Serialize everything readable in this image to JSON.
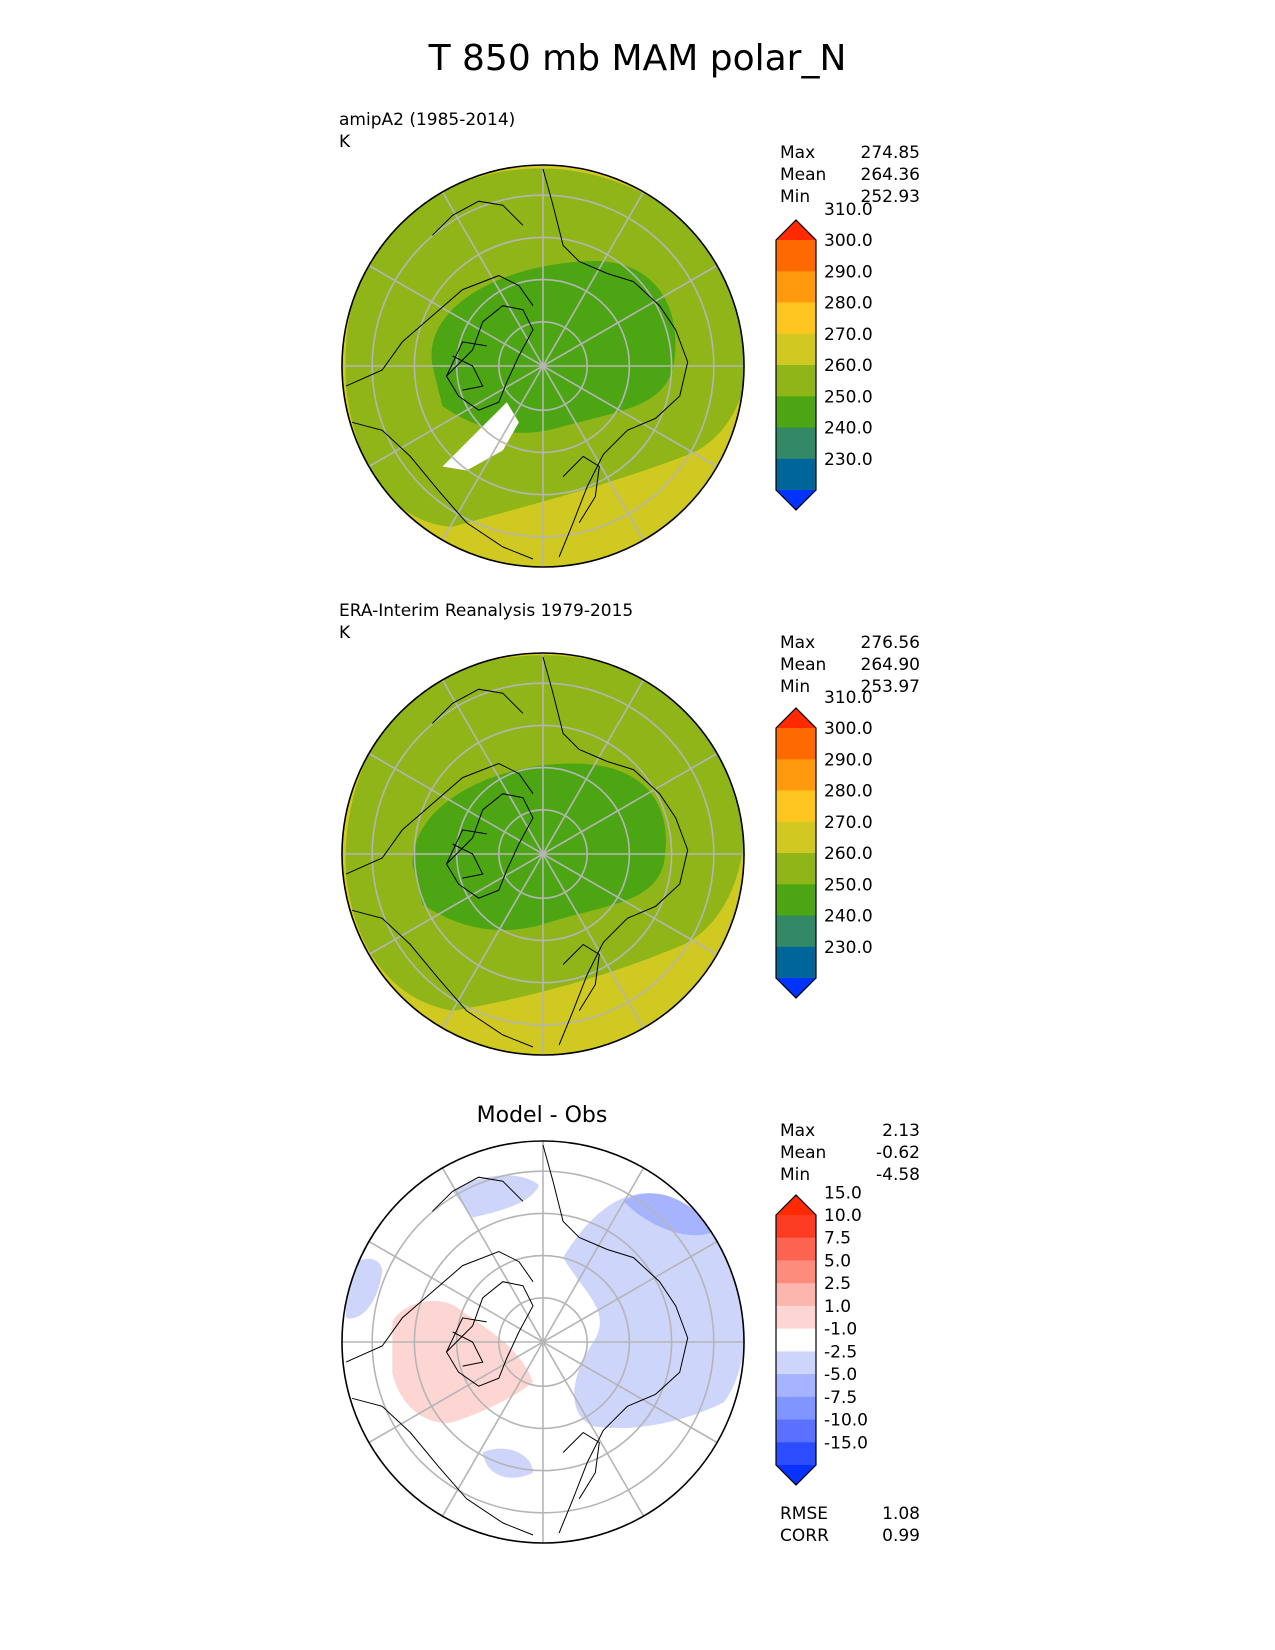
{
  "title": "T 850 mb MAM polar_N",
  "colors": {
    "abs_bins": [
      "#0033ff",
      "#006699",
      "#338866",
      "#4ca613",
      "#8fb519",
      "#d0c921",
      "#ffc51f",
      "#ff9a0d",
      "#ff6a00",
      "#ff2a00"
    ],
    "diff_bins": [
      "#0a32ff",
      "#2b4dff",
      "#5a71ff",
      "#8095ff",
      "#a6b4ff",
      "#cdd5fb",
      "#ffffff",
      "#fdd6d3",
      "#fdb6ae",
      "#fc8c7c",
      "#fb6450",
      "#fb3c22",
      "#ff2a00"
    ],
    "land_line": "#000000",
    "grid_line": "#b5b5b5"
  },
  "panels": [
    {
      "id": "test",
      "label_line1": "amipA2 (1985-2014)",
      "label_line2": "K",
      "stats": [
        {
          "label": "Max",
          "value": "274.85"
        },
        {
          "label": "Mean",
          "value": "264.36"
        },
        {
          "label": "Min",
          "value": "252.93"
        }
      ]
    },
    {
      "id": "ref",
      "label_line1": "ERA-Interim Reanalysis 1979-2015",
      "label_line2": "K",
      "stats": [
        {
          "label": "Max",
          "value": "276.56"
        },
        {
          "label": "Mean",
          "value": "264.90"
        },
        {
          "label": "Min",
          "value": "253.97"
        }
      ]
    },
    {
      "id": "diff",
      "title": "Model - Obs",
      "stats": [
        {
          "label": "Max",
          "value": "2.13"
        },
        {
          "label": "Mean",
          "value": "-0.62"
        },
        {
          "label": "Min",
          "value": "-4.58"
        }
      ],
      "metrics": [
        {
          "label": "RMSE",
          "value": "1.08"
        },
        {
          "label": "CORR",
          "value": "0.99"
        }
      ]
    }
  ],
  "chart_data": [
    {
      "type": "heatmap",
      "title": "amipA2 (1985-2014)",
      "units": "K",
      "projection": "north polar stereographic",
      "colorbar_levels": [
        230,
        240,
        250,
        260,
        270,
        280,
        290,
        300,
        310
      ],
      "colorbar_tick_labels": [
        "230.0",
        "240.0",
        "250.0",
        "260.0",
        "270.0",
        "280.0",
        "290.0",
        "300.0",
        "310.0"
      ],
      "extend": "both",
      "max": 274.85,
      "mean": 264.36,
      "min": 252.93
    },
    {
      "type": "heatmap",
      "title": "ERA-Interim Reanalysis 1979-2015",
      "units": "K",
      "projection": "north polar stereographic",
      "colorbar_levels": [
        230,
        240,
        250,
        260,
        270,
        280,
        290,
        300,
        310
      ],
      "colorbar_tick_labels": [
        "230.0",
        "240.0",
        "250.0",
        "260.0",
        "270.0",
        "280.0",
        "290.0",
        "300.0",
        "310.0"
      ],
      "extend": "both",
      "max": 276.56,
      "mean": 264.9,
      "min": 253.97
    },
    {
      "type": "heatmap",
      "title": "Model - Obs",
      "projection": "north polar stereographic",
      "colorbar_levels": [
        -15,
        -10,
        -7.5,
        -5,
        -2.5,
        -1,
        1,
        2.5,
        5,
        7.5,
        10,
        15
      ],
      "colorbar_tick_labels": [
        "-15.0",
        "-10.0",
        "-7.5",
        "-5.0",
        "-2.5",
        "-1.0",
        "1.0",
        "2.5",
        "5.0",
        "7.5",
        "10.0",
        "15.0"
      ],
      "extend": "both",
      "max": 2.13,
      "mean": -0.62,
      "min": -4.58,
      "rmse": 1.08,
      "corr": 0.99
    }
  ]
}
